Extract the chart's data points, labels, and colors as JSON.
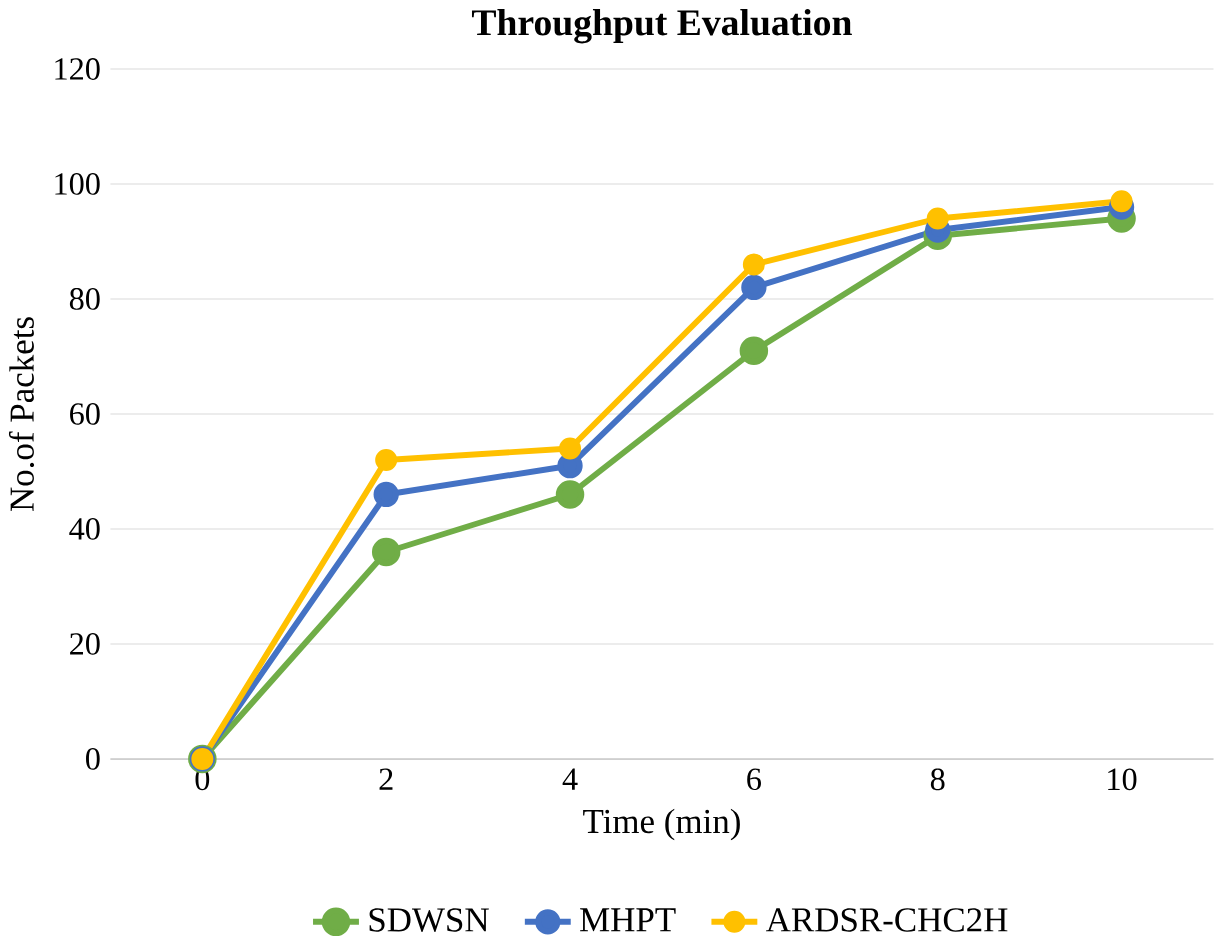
{
  "chart_data": {
    "type": "line",
    "title": "Throughput Evaluation",
    "xlabel": "Time (min)",
    "ylabel": "No.of Packets",
    "categories": [
      "0",
      "2",
      "4",
      "6",
      "8",
      "10"
    ],
    "series": [
      {
        "name": "SDWSN",
        "color": "#70ad47",
        "values": [
          0,
          36,
          46,
          71,
          91,
          94
        ]
      },
      {
        "name": "MHPT",
        "color": "#4472c4",
        "values": [
          0,
          46,
          51,
          82,
          92,
          96
        ]
      },
      {
        "name": "ARDSR-CHC2H",
        "color": "#ffc000",
        "values": [
          0,
          52,
          54,
          86,
          94,
          97
        ]
      }
    ],
    "ylim": [
      0,
      120
    ],
    "yticks": [
      0,
      20,
      40,
      60,
      80,
      100,
      120
    ],
    "grid": "y",
    "legend": "bottom",
    "marker": "circle",
    "line_style": "solid"
  }
}
